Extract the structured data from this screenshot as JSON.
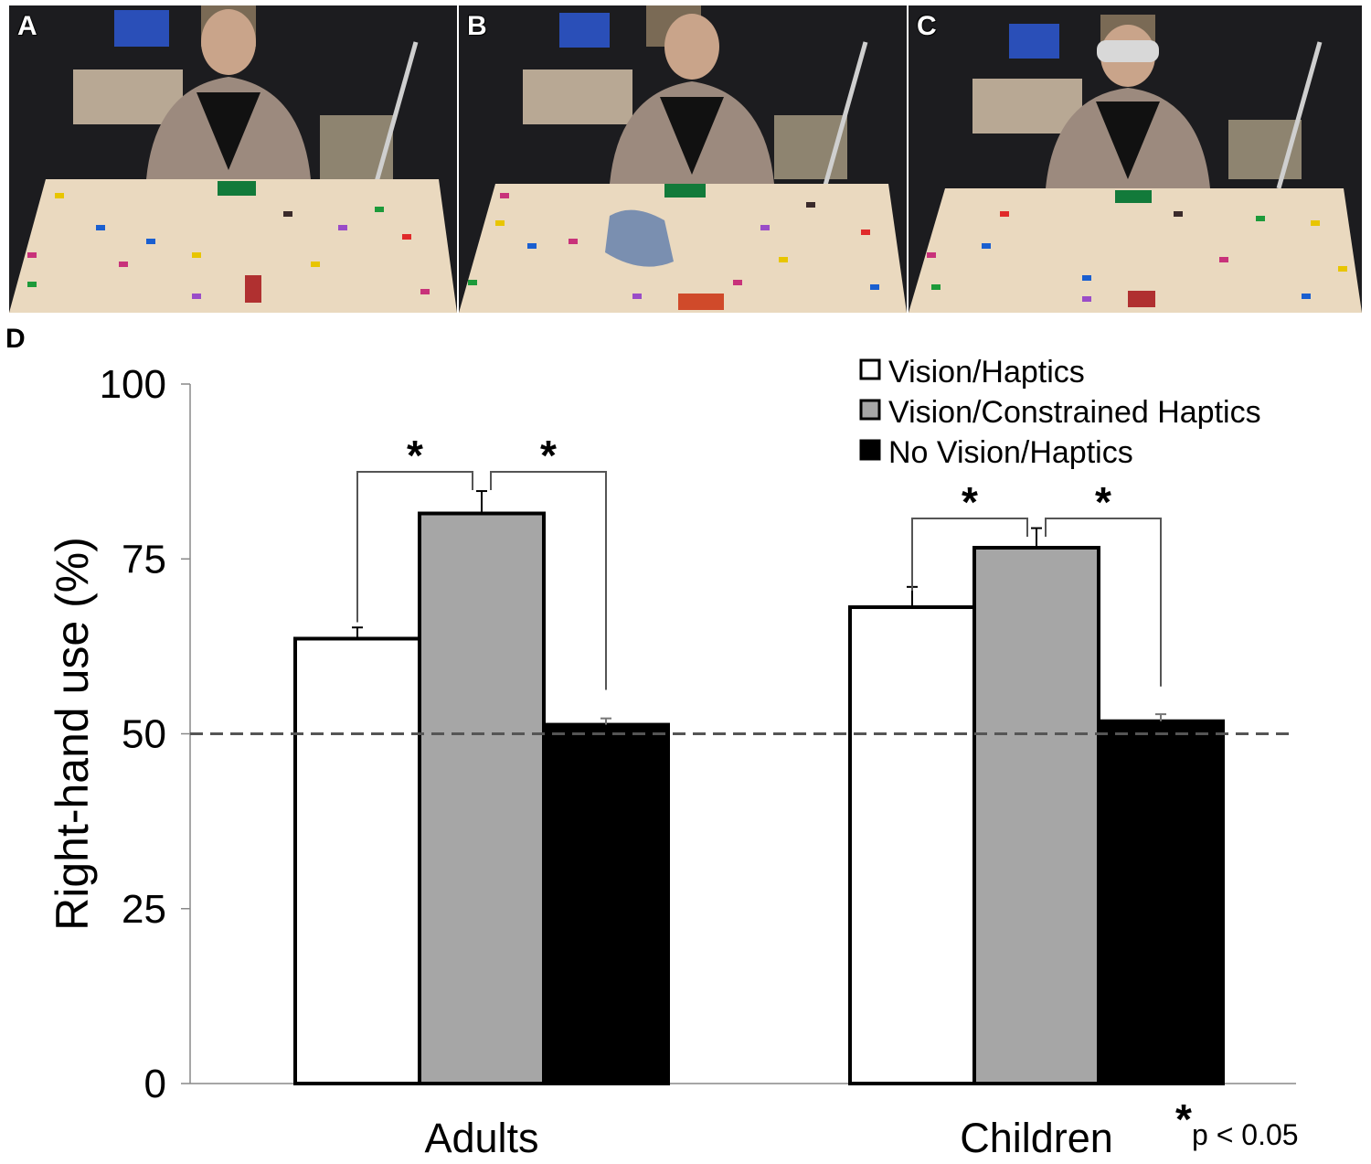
{
  "panels": [
    {
      "label": "A",
      "condition": "Vision/Haptics"
    },
    {
      "label": "B",
      "condition": "Vision/Constrained Haptics"
    },
    {
      "label": "C",
      "condition": "No Vision/Haptics"
    }
  ],
  "chart_label": "D",
  "colors": {
    "bar_edge": "#000000",
    "axis": "#888888",
    "reference_line": "#555555",
    "photo_wall": "#1c1c1f",
    "photo_table": "#ead9bf"
  },
  "chart_data": {
    "type": "bar",
    "title": "",
    "xlabel": "",
    "ylabel": "Right-hand use (%)",
    "ylim": [
      0,
      100
    ],
    "yticks": [
      0,
      25,
      50,
      75,
      100
    ],
    "grid": false,
    "legend_position": "top-right",
    "categories": [
      "Adults",
      "Children"
    ],
    "series": [
      {
        "name": "Vision/Haptics",
        "color": "#ffffff",
        "values": [
          63.6,
          68.1
        ],
        "errors": [
          1.6,
          2.9
        ]
      },
      {
        "name": "Vision/Constrained Haptics",
        "color": "#a6a6a6",
        "values": [
          81.5,
          76.6
        ],
        "errors": [
          3.2,
          2.8
        ]
      },
      {
        "name": "No Vision/Haptics",
        "color": "#000000",
        "values": [
          51.3,
          51.8
        ],
        "errors": [
          0.9,
          1.0
        ]
      }
    ],
    "reference_line": {
      "y": 50,
      "style": "dashed"
    },
    "significance": [
      {
        "category": "Adults",
        "pair": [
          "Vision/Haptics",
          "Vision/Constrained Haptics"
        ],
        "label": "*"
      },
      {
        "category": "Adults",
        "pair": [
          "Vision/Constrained Haptics",
          "No Vision/Haptics"
        ],
        "label": "*"
      },
      {
        "category": "Children",
        "pair": [
          "Vision/Haptics",
          "Vision/Constrained Haptics"
        ],
        "label": "*"
      },
      {
        "category": "Children",
        "pair": [
          "Vision/Constrained Haptics",
          "No Vision/Haptics"
        ],
        "label": "*"
      }
    ],
    "annotation": {
      "star": "*",
      "text": "p < 0.05"
    }
  }
}
